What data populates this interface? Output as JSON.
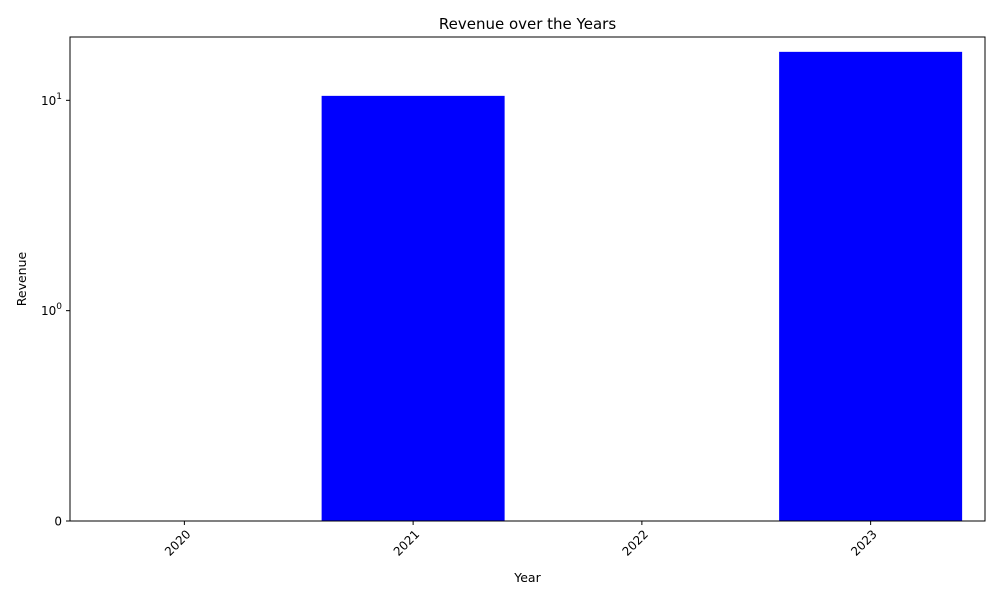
{
  "chart_data": {
    "type": "bar",
    "title": "Revenue over the Years",
    "xlabel": "Year",
    "ylabel": "Revenue",
    "categories": [
      "2020",
      "2021",
      "2022",
      "2023"
    ],
    "values": [
      0,
      10.5,
      0,
      17
    ],
    "y_scale": "symlog",
    "ylim": [
      0,
      20
    ],
    "y_ticks": [
      {
        "value": 0,
        "base": "0",
        "exp": ""
      },
      {
        "value": 1,
        "base": "10",
        "exp": "0"
      },
      {
        "value": 10,
        "base": "10",
        "exp": "1"
      }
    ],
    "x_tick_rotation": "45 degrees",
    "grid": false,
    "legend": "none",
    "bar_color": "#0000ff"
  }
}
